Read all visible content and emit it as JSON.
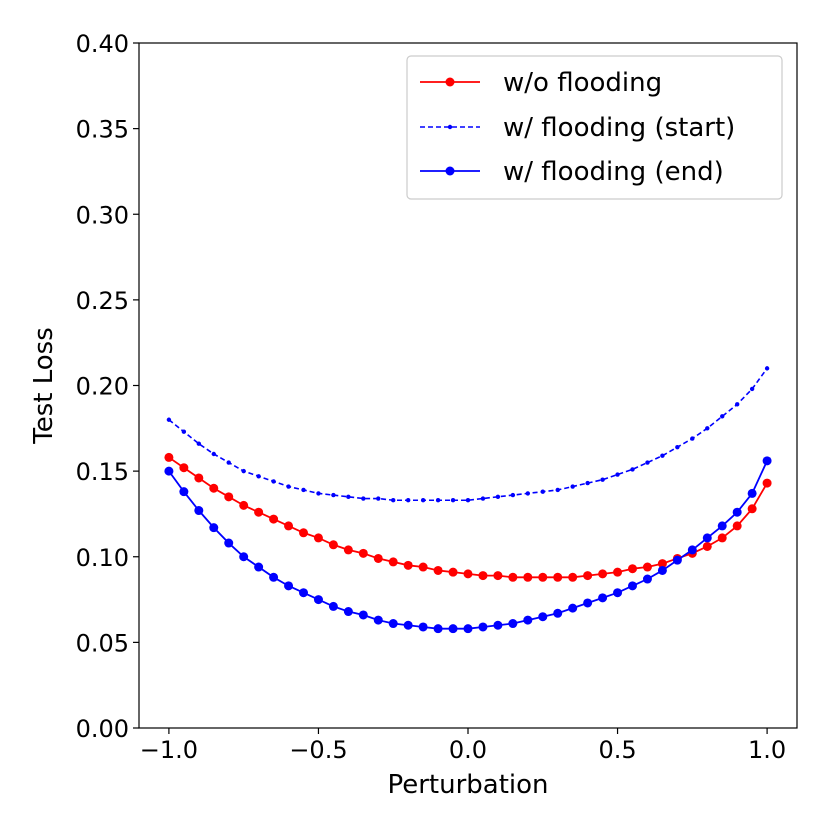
{
  "chart_data": {
    "type": "line",
    "title": "",
    "xlabel": "Perturbation",
    "ylabel": "Test Loss",
    "xlim": [
      -1.1,
      1.1
    ],
    "ylim": [
      0.0,
      0.4
    ],
    "x_ticks": [
      -1.0,
      -0.5,
      0.0,
      0.5,
      1.0
    ],
    "x_tick_labels": [
      "−1.0",
      "−0.5",
      "0.0",
      "0.5",
      "1.0"
    ],
    "y_ticks": [
      0.0,
      0.05,
      0.1,
      0.15,
      0.2,
      0.25,
      0.3,
      0.35,
      0.4
    ],
    "y_tick_labels": [
      "0.00",
      "0.05",
      "0.10",
      "0.15",
      "0.20",
      "0.25",
      "0.30",
      "0.35",
      "0.40"
    ],
    "grid": false,
    "legend_position": "top-right",
    "x": [
      -1.0,
      -0.95,
      -0.9,
      -0.85,
      -0.8,
      -0.75,
      -0.7,
      -0.65,
      -0.6,
      -0.55,
      -0.5,
      -0.45,
      -0.4,
      -0.35,
      -0.3,
      -0.25,
      -0.2,
      -0.15,
      -0.1,
      -0.05,
      0.0,
      0.05,
      0.1,
      0.15,
      0.2,
      0.25,
      0.3,
      0.35,
      0.4,
      0.45,
      0.5,
      0.55,
      0.6,
      0.65,
      0.7,
      0.75,
      0.8,
      0.85,
      0.9,
      0.95,
      1.0
    ],
    "series": [
      {
        "name": "w/o flooding",
        "color": "#ff0000",
        "linestyle": "solid",
        "marker": "large-dot",
        "values": [
          0.158,
          0.152,
          0.146,
          0.14,
          0.135,
          0.13,
          0.126,
          0.122,
          0.118,
          0.114,
          0.111,
          0.107,
          0.104,
          0.102,
          0.099,
          0.097,
          0.095,
          0.094,
          0.092,
          0.091,
          0.09,
          0.089,
          0.089,
          0.088,
          0.088,
          0.088,
          0.088,
          0.088,
          0.089,
          0.09,
          0.091,
          0.093,
          0.094,
          0.096,
          0.099,
          0.102,
          0.106,
          0.111,
          0.118,
          0.128,
          0.143
        ]
      },
      {
        "name": "w/ flooding (start)",
        "color": "#0000ff",
        "linestyle": "dashed",
        "marker": "small-dot",
        "values": [
          0.18,
          0.173,
          0.166,
          0.16,
          0.155,
          0.15,
          0.147,
          0.144,
          0.141,
          0.139,
          0.137,
          0.136,
          0.135,
          0.134,
          0.134,
          0.133,
          0.133,
          0.133,
          0.133,
          0.133,
          0.133,
          0.134,
          0.135,
          0.136,
          0.137,
          0.138,
          0.139,
          0.141,
          0.143,
          0.145,
          0.148,
          0.151,
          0.155,
          0.159,
          0.164,
          0.169,
          0.175,
          0.182,
          0.189,
          0.198,
          0.21
        ]
      },
      {
        "name": "w/ flooding (end)",
        "color": "#0000ff",
        "linestyle": "solid",
        "marker": "large-dot",
        "values": [
          0.15,
          0.138,
          0.127,
          0.117,
          0.108,
          0.1,
          0.094,
          0.088,
          0.083,
          0.079,
          0.075,
          0.071,
          0.068,
          0.066,
          0.063,
          0.061,
          0.06,
          0.059,
          0.058,
          0.058,
          0.058,
          0.059,
          0.06,
          0.061,
          0.063,
          0.065,
          0.067,
          0.07,
          0.073,
          0.076,
          0.079,
          0.083,
          0.087,
          0.092,
          0.098,
          0.104,
          0.111,
          0.118,
          0.126,
          0.137,
          0.156
        ]
      }
    ]
  }
}
